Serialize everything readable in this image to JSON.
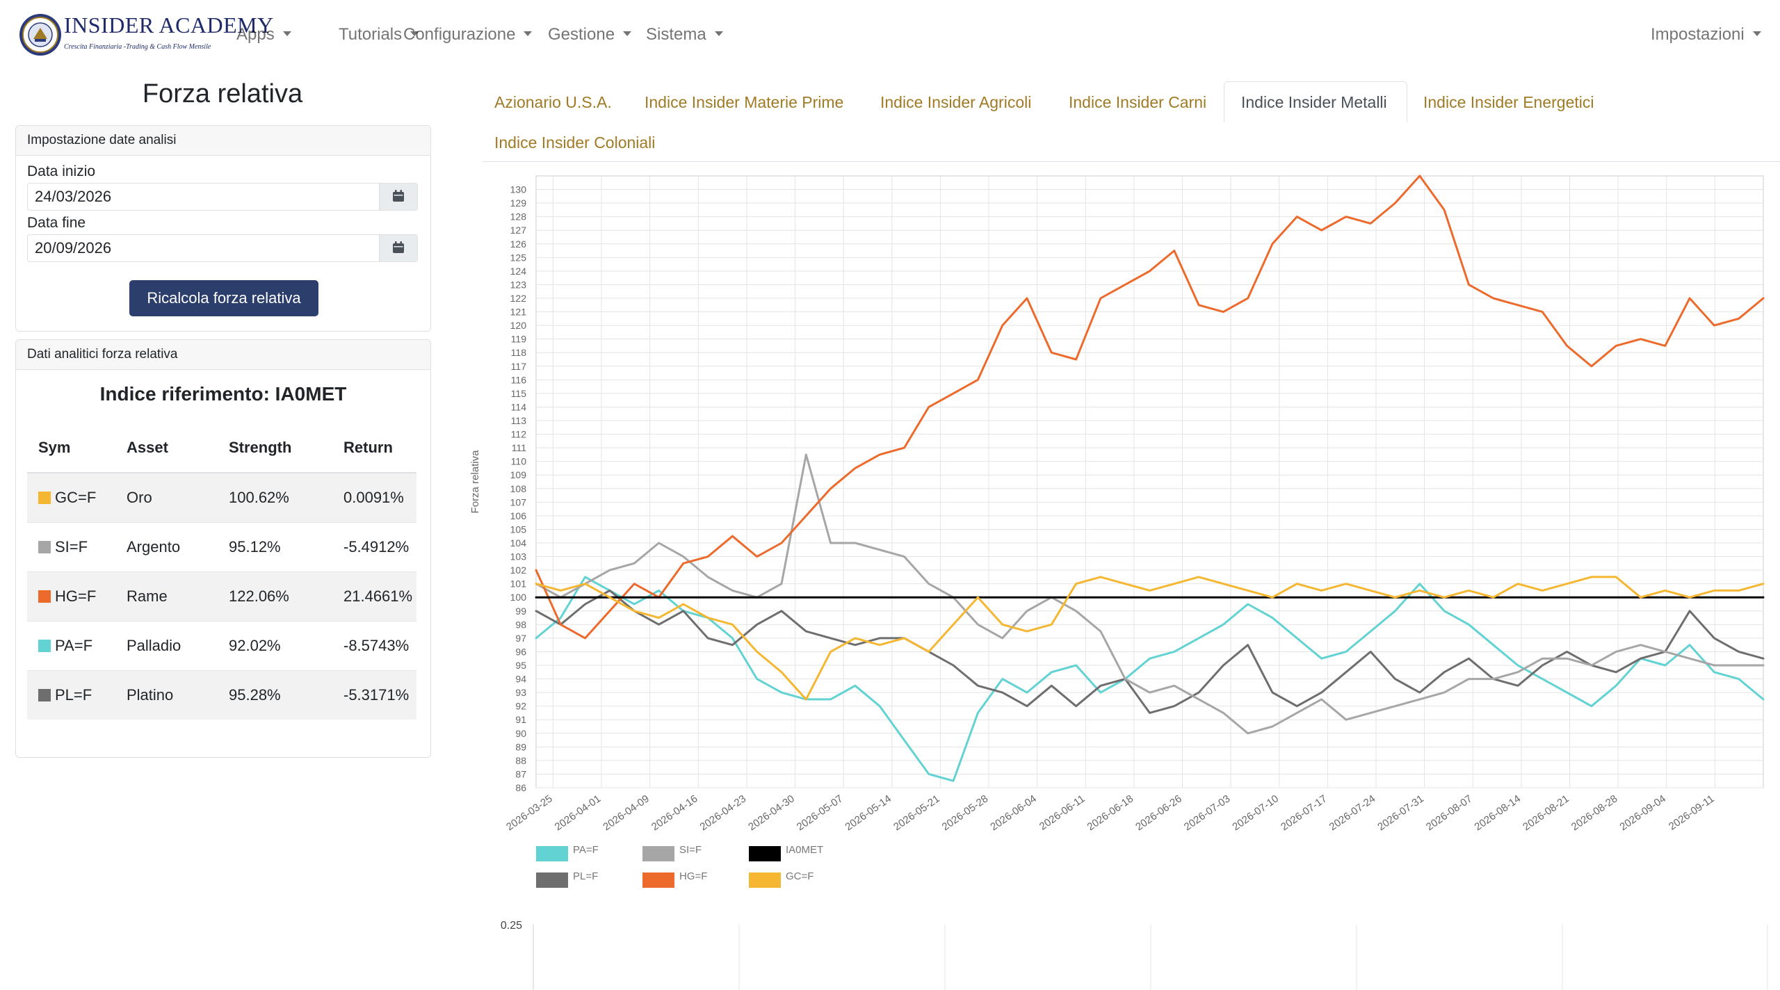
{
  "navbar": {
    "brand_title": "INSIDER ACADEMY",
    "brand_subtitle": "Crescita Finanziaria -Trading & Cash Flow Mensile",
    "menu": [
      {
        "label": "Apps"
      },
      {
        "label": "Tutorials"
      },
      {
        "label": "Configurazione"
      },
      {
        "label": "Gestione"
      },
      {
        "label": "Sistema"
      }
    ],
    "settings_label": "Impostazioni"
  },
  "page_title": "Forza relativa",
  "date_card": {
    "header": "Impostazione date analisi",
    "start_label": "Data inizio",
    "start_value": "24/03/2026",
    "end_label": "Data fine",
    "end_value": "20/09/2026",
    "button_label": "Ricalcola forza relativa"
  },
  "analytics_card": {
    "header": "Dati analitici forza relativa",
    "reference": "Indice riferimento: IA0MET",
    "columns": [
      "Sym",
      "Asset",
      "Strength",
      "Return"
    ],
    "rows": [
      {
        "sym": "GC=F",
        "asset": "Oro",
        "strength": "100.62%",
        "ret": "0.0091%",
        "color": "#f5b731"
      },
      {
        "sym": "SI=F",
        "asset": "Argento",
        "strength": "95.12%",
        "ret": "-5.4912%",
        "color": "#a6a6a6"
      },
      {
        "sym": "HG=F",
        "asset": "Rame",
        "strength": "122.06%",
        "ret": "21.4661%",
        "color": "#ec6a2c"
      },
      {
        "sym": "PA=F",
        "asset": "Palladio",
        "strength": "92.02%",
        "ret": "-8.5743%",
        "color": "#62d2d2"
      },
      {
        "sym": "PL=F",
        "asset": "Platino",
        "strength": "95.28%",
        "ret": "-5.3171%",
        "color": "#6e6e6e"
      }
    ]
  },
  "tabs": [
    {
      "label": "Azionario U.S.A."
    },
    {
      "label": "Indice Insider Materie Prime"
    },
    {
      "label": "Indice Insider Agricoli"
    },
    {
      "label": "Indice Insider Carni"
    },
    {
      "label": "Indice Insider Metalli"
    },
    {
      "label": "Indice Insider Energetici"
    },
    {
      "label": "Indice Insider Coloniali"
    }
  ],
  "active_tab_index": 4,
  "chart_data": [
    {
      "type": "line",
      "ylabel": "Forza relativa",
      "ylim": [
        86,
        131
      ],
      "yticks": [
        86,
        87,
        88,
        89,
        90,
        91,
        92,
        93,
        94,
        95,
        96,
        97,
        98,
        99,
        100,
        101,
        102,
        103,
        104,
        105,
        106,
        107,
        108,
        109,
        110,
        111,
        112,
        113,
        114,
        115,
        116,
        117,
        118,
        119,
        120,
        121,
        122,
        123,
        124,
        125,
        126,
        127,
        128,
        129,
        130
      ],
      "x_tick_labels": [
        "2026-03-25",
        "2026-04-01",
        "2026-04-09",
        "2026-04-16",
        "2026-04-23",
        "2026-04-30",
        "2026-05-07",
        "2026-05-14",
        "2026-05-21",
        "2026-05-28",
        "2026-06-04",
        "2026-06-11",
        "2026-06-18",
        "2026-06-26",
        "2026-07-03",
        "2026-07-10",
        "2026-07-17",
        "2026-07-24",
        "2026-07-31",
        "2026-08-07",
        "2026-08-14",
        "2026-08-21",
        "2026-08-28",
        "2026-09-04",
        "2026-09-11"
      ],
      "grid": true,
      "legend": "bottom-left",
      "series": [
        {
          "name": "PA=F",
          "color": "#62d2d2",
          "values": [
            97,
            98.5,
            101.5,
            100.5,
            99.5,
            100.5,
            99,
            98.5,
            97,
            94,
            93,
            92.5,
            92.5,
            93.5,
            92,
            89.5,
            87,
            86.5,
            91.5,
            94,
            93,
            94.5,
            95,
            93,
            94,
            95.5,
            96,
            97,
            98,
            99.5,
            98.5,
            97,
            95.5,
            96,
            97.5,
            99,
            101,
            99,
            98,
            96.5,
            95,
            94,
            93,
            92,
            93.5,
            95.5,
            95,
            96.5,
            94.5,
            94,
            92.5
          ]
        },
        {
          "name": "PL=F",
          "color": "#6e6e6e",
          "values": [
            99,
            98,
            99.5,
            100.5,
            99,
            98,
            99,
            97,
            96.5,
            98,
            99,
            97.5,
            97,
            96.5,
            97,
            97,
            96,
            95,
            93.5,
            93,
            92,
            93.5,
            92,
            93.5,
            94,
            91.5,
            92,
            93,
            95,
            96.5,
            93,
            92,
            93,
            94.5,
            96,
            94,
            93,
            94.5,
            95.5,
            94,
            93.5,
            95,
            96,
            95,
            94.5,
            95.5,
            96,
            99,
            97,
            96,
            95.5
          ]
        },
        {
          "name": "SI=F",
          "color": "#a6a6a6",
          "values": [
            101,
            100,
            101,
            102,
            102.5,
            104,
            103,
            101.5,
            100.5,
            100,
            101,
            110.5,
            104,
            104,
            103.5,
            103,
            101,
            100,
            98,
            97,
            99,
            100,
            99,
            97.5,
            94,
            93,
            93.5,
            92.5,
            91.5,
            90,
            90.5,
            91.5,
            92.5,
            91,
            91.5,
            92,
            92.5,
            93,
            94,
            94,
            94.5,
            95.5,
            95.5,
            95,
            96,
            96.5,
            96,
            95.5,
            95,
            95,
            95
          ]
        },
        {
          "name": "HG=F",
          "color": "#ec6a2c",
          "values": [
            102,
            98,
            97,
            99,
            101,
            100,
            102.5,
            103,
            104.5,
            103,
            104,
            106,
            108,
            109.5,
            110.5,
            111,
            114,
            115,
            116,
            120,
            122,
            118,
            117.5,
            122,
            123,
            124,
            125.5,
            121.5,
            121,
            122,
            126,
            128,
            127,
            128,
            127.5,
            129,
            131,
            128.5,
            123,
            122,
            121.5,
            121,
            118.5,
            117,
            118.5,
            119,
            118.5,
            122,
            120,
            120.5,
            122
          ]
        },
        {
          "name": "IA0MET",
          "color": "#000000",
          "values": [
            100,
            100,
            100,
            100,
            100,
            100,
            100,
            100,
            100,
            100,
            100,
            100,
            100,
            100,
            100,
            100,
            100,
            100,
            100,
            100,
            100,
            100,
            100,
            100,
            100,
            100,
            100,
            100,
            100,
            100,
            100,
            100,
            100,
            100,
            100,
            100,
            100,
            100,
            100,
            100,
            100,
            100,
            100,
            100,
            100,
            100,
            100,
            100,
            100,
            100,
            100
          ]
        },
        {
          "name": "GC=F",
          "color": "#f5b731",
          "values": [
            101,
            100.5,
            101,
            100,
            99,
            98.5,
            99.5,
            98.5,
            98,
            96,
            94.5,
            92.5,
            96,
            97,
            96.5,
            97,
            96,
            98,
            100,
            98,
            97.5,
            98,
            101,
            101.5,
            101,
            100.5,
            101,
            101.5,
            101,
            100.5,
            100,
            101,
            100.5,
            101,
            100.5,
            100,
            100.5,
            100,
            100.5,
            100,
            101,
            100.5,
            101,
            101.5,
            101.5,
            100,
            100.5,
            100,
            100.5,
            100.5,
            101
          ]
        }
      ]
    },
    {
      "type": "line",
      "yticks": [
        0.25
      ],
      "grid": true
    }
  ]
}
